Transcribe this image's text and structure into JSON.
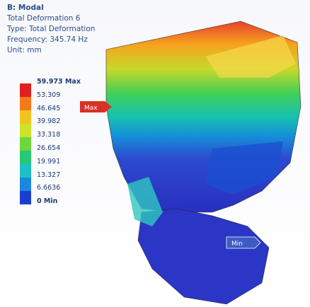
{
  "header": {
    "title": "B: Modal",
    "lines": [
      "Total Deformation 6",
      "Type: Total Deformation",
      "Frequency: 345.74 Hz",
      "Unit: mm"
    ]
  },
  "legend": {
    "labels": [
      "59.973 Max",
      "53.309",
      "46.645",
      "39.982",
      "33.318",
      "26.654",
      "19.991",
      "13.327",
      "6.6636",
      "0 Min"
    ]
  },
  "probes": {
    "max": "Max",
    "min": "Min"
  }
}
